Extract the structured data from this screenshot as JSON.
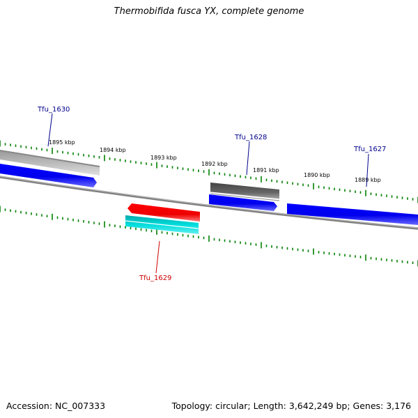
{
  "title": "Thermobifida fusca YX, complete genome",
  "footer": {
    "accession": "Accession: NC_007333",
    "summary": "Topology: circular; Length: 3,642,249 bp; Genes: 3,176"
  },
  "scale_labels": [
    "1895 kbp",
    "1894 kbp",
    "1893 kbp",
    "1892 kbp",
    "1891 kbp",
    "1890 kbp",
    "1889 kbp"
  ],
  "gene_labels": [
    {
      "id": "tfu1630",
      "text": "Tfu_1630",
      "color": "#00008b"
    },
    {
      "id": "tfu1628",
      "text": "Tfu_1628",
      "color": "#00008b"
    },
    {
      "id": "tfu1627",
      "text": "Tfu_1627",
      "color": "#00008b"
    },
    {
      "id": "tfu1629",
      "text": "Tfu_1629",
      "color": "#cc0000"
    }
  ],
  "colors": {
    "forward_gene": "#0000ff",
    "reverse_gene": "#ff0000",
    "feature_teal": "#00cccc",
    "feature_dark_gray": "#555555",
    "feature_light_gray": "#bbbbbb",
    "backbone": "#808080",
    "tick": "#008000"
  }
}
